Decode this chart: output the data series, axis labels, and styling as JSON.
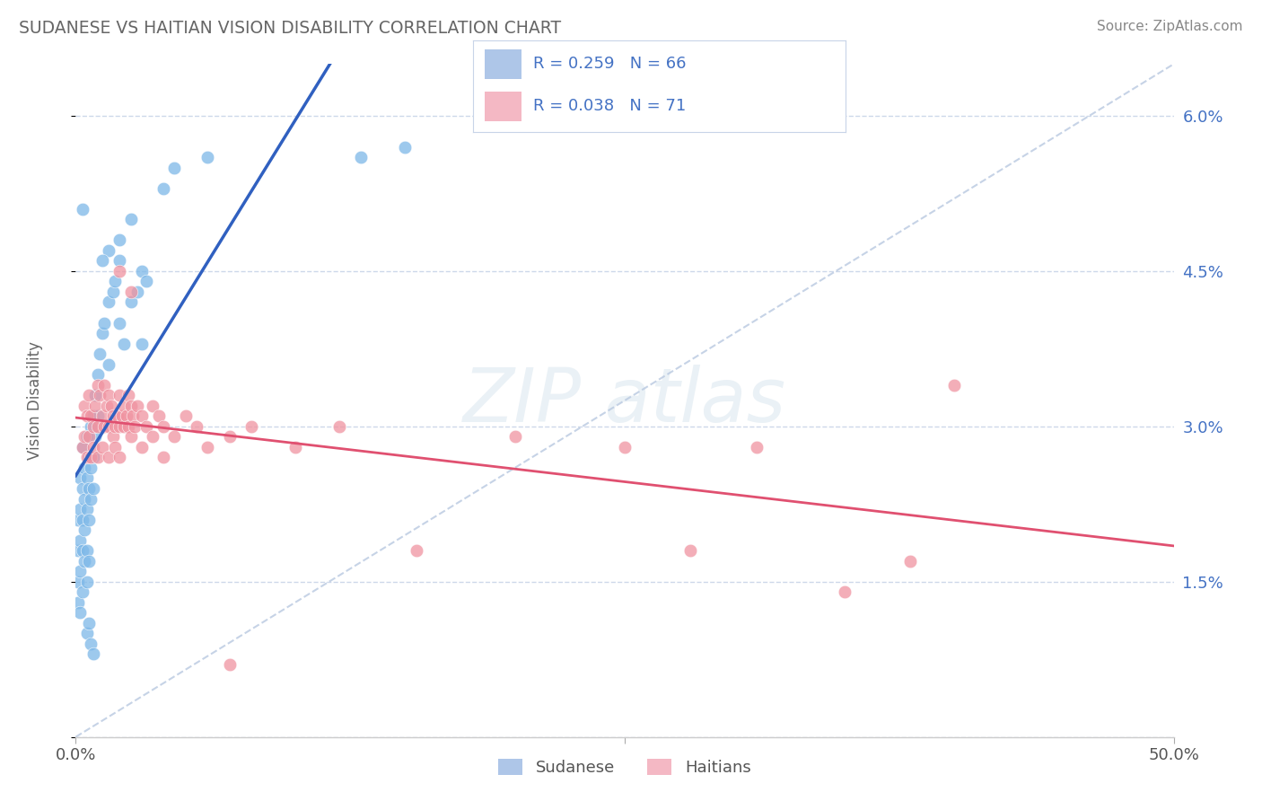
{
  "title": "SUDANESE VS HAITIAN VISION DISABILITY CORRELATION CHART",
  "source": "Source: ZipAtlas.com",
  "ylabel": "Vision Disability",
  "xlim": [
    0.0,
    0.5
  ],
  "ylim": [
    0.0,
    0.065
  ],
  "ytick_labels": [
    "",
    "1.5%",
    "3.0%",
    "4.5%",
    "6.0%"
  ],
  "ytick_values": [
    0.0,
    0.015,
    0.03,
    0.045,
    0.06
  ],
  "xtick_labels": [
    "0.0%",
    "",
    "50.0%"
  ],
  "xtick_values": [
    0.0,
    0.25,
    0.5
  ],
  "sudanese_color": "#7db8e8",
  "haitian_color": "#f093a0",
  "sudanese_line_color": "#3060c0",
  "haitian_line_color": "#e05070",
  "diag_line_color": "#b8c8e0",
  "grid_color": "#c8d4e8",
  "background_color": "#ffffff",
  "legend_box_color": "#aec6e8",
  "legend_box_color2": "#f4b8c4",
  "legend_text_color": "#4472c4",
  "sudanese_points": [
    [
      0.001,
      0.018
    ],
    [
      0.001,
      0.021
    ],
    [
      0.001,
      0.015
    ],
    [
      0.001,
      0.013
    ],
    [
      0.002,
      0.025
    ],
    [
      0.002,
      0.022
    ],
    [
      0.002,
      0.019
    ],
    [
      0.002,
      0.016
    ],
    [
      0.002,
      0.012
    ],
    [
      0.003,
      0.028
    ],
    [
      0.003,
      0.024
    ],
    [
      0.003,
      0.021
    ],
    [
      0.003,
      0.018
    ],
    [
      0.003,
      0.014
    ],
    [
      0.004,
      0.026
    ],
    [
      0.004,
      0.023
    ],
    [
      0.004,
      0.02
    ],
    [
      0.004,
      0.017
    ],
    [
      0.005,
      0.029
    ],
    [
      0.005,
      0.025
    ],
    [
      0.005,
      0.022
    ],
    [
      0.005,
      0.018
    ],
    [
      0.005,
      0.015
    ],
    [
      0.006,
      0.027
    ],
    [
      0.006,
      0.024
    ],
    [
      0.006,
      0.021
    ],
    [
      0.006,
      0.017
    ],
    [
      0.007,
      0.03
    ],
    [
      0.007,
      0.026
    ],
    [
      0.007,
      0.023
    ],
    [
      0.008,
      0.031
    ],
    [
      0.008,
      0.027
    ],
    [
      0.008,
      0.024
    ],
    [
      0.009,
      0.033
    ],
    [
      0.009,
      0.029
    ],
    [
      0.01,
      0.035
    ],
    [
      0.01,
      0.031
    ],
    [
      0.011,
      0.037
    ],
    [
      0.012,
      0.039
    ],
    [
      0.013,
      0.04
    ],
    [
      0.015,
      0.042
    ],
    [
      0.015,
      0.036
    ],
    [
      0.017,
      0.043
    ],
    [
      0.018,
      0.044
    ],
    [
      0.02,
      0.046
    ],
    [
      0.02,
      0.04
    ],
    [
      0.022,
      0.038
    ],
    [
      0.025,
      0.042
    ],
    [
      0.028,
      0.043
    ],
    [
      0.03,
      0.045
    ],
    [
      0.03,
      0.038
    ],
    [
      0.032,
      0.044
    ],
    [
      0.005,
      0.01
    ],
    [
      0.006,
      0.011
    ],
    [
      0.007,
      0.009
    ],
    [
      0.008,
      0.008
    ],
    [
      0.003,
      0.051
    ],
    [
      0.015,
      0.047
    ],
    [
      0.02,
      0.048
    ],
    [
      0.025,
      0.05
    ],
    [
      0.012,
      0.046
    ],
    [
      0.04,
      0.053
    ],
    [
      0.045,
      0.055
    ],
    [
      0.06,
      0.056
    ],
    [
      0.13,
      0.056
    ],
    [
      0.15,
      0.057
    ]
  ],
  "haitian_points": [
    [
      0.003,
      0.028
    ],
    [
      0.004,
      0.032
    ],
    [
      0.004,
      0.029
    ],
    [
      0.005,
      0.031
    ],
    [
      0.005,
      0.027
    ],
    [
      0.006,
      0.033
    ],
    [
      0.006,
      0.029
    ],
    [
      0.007,
      0.031
    ],
    [
      0.007,
      0.027
    ],
    [
      0.008,
      0.03
    ],
    [
      0.008,
      0.028
    ],
    [
      0.009,
      0.032
    ],
    [
      0.01,
      0.034
    ],
    [
      0.01,
      0.03
    ],
    [
      0.01,
      0.027
    ],
    [
      0.011,
      0.033
    ],
    [
      0.012,
      0.031
    ],
    [
      0.012,
      0.028
    ],
    [
      0.013,
      0.034
    ],
    [
      0.013,
      0.03
    ],
    [
      0.014,
      0.032
    ],
    [
      0.015,
      0.033
    ],
    [
      0.015,
      0.03
    ],
    [
      0.015,
      0.027
    ],
    [
      0.016,
      0.032
    ],
    [
      0.017,
      0.031
    ],
    [
      0.017,
      0.029
    ],
    [
      0.018,
      0.03
    ],
    [
      0.018,
      0.028
    ],
    [
      0.019,
      0.031
    ],
    [
      0.02,
      0.045
    ],
    [
      0.02,
      0.033
    ],
    [
      0.02,
      0.03
    ],
    [
      0.02,
      0.027
    ],
    [
      0.021,
      0.031
    ],
    [
      0.022,
      0.032
    ],
    [
      0.022,
      0.03
    ],
    [
      0.023,
      0.031
    ],
    [
      0.024,
      0.033
    ],
    [
      0.024,
      0.03
    ],
    [
      0.025,
      0.043
    ],
    [
      0.025,
      0.032
    ],
    [
      0.025,
      0.029
    ],
    [
      0.026,
      0.031
    ],
    [
      0.027,
      0.03
    ],
    [
      0.028,
      0.032
    ],
    [
      0.03,
      0.031
    ],
    [
      0.03,
      0.028
    ],
    [
      0.032,
      0.03
    ],
    [
      0.035,
      0.032
    ],
    [
      0.035,
      0.029
    ],
    [
      0.038,
      0.031
    ],
    [
      0.04,
      0.03
    ],
    [
      0.04,
      0.027
    ],
    [
      0.045,
      0.029
    ],
    [
      0.05,
      0.031
    ],
    [
      0.055,
      0.03
    ],
    [
      0.06,
      0.028
    ],
    [
      0.07,
      0.029
    ],
    [
      0.08,
      0.03
    ],
    [
      0.1,
      0.028
    ],
    [
      0.12,
      0.03
    ],
    [
      0.2,
      0.029
    ],
    [
      0.25,
      0.028
    ],
    [
      0.31,
      0.028
    ],
    [
      0.35,
      0.014
    ],
    [
      0.38,
      0.017
    ],
    [
      0.4,
      0.034
    ],
    [
      0.155,
      0.018
    ],
    [
      0.28,
      0.018
    ],
    [
      0.07,
      0.007
    ]
  ]
}
